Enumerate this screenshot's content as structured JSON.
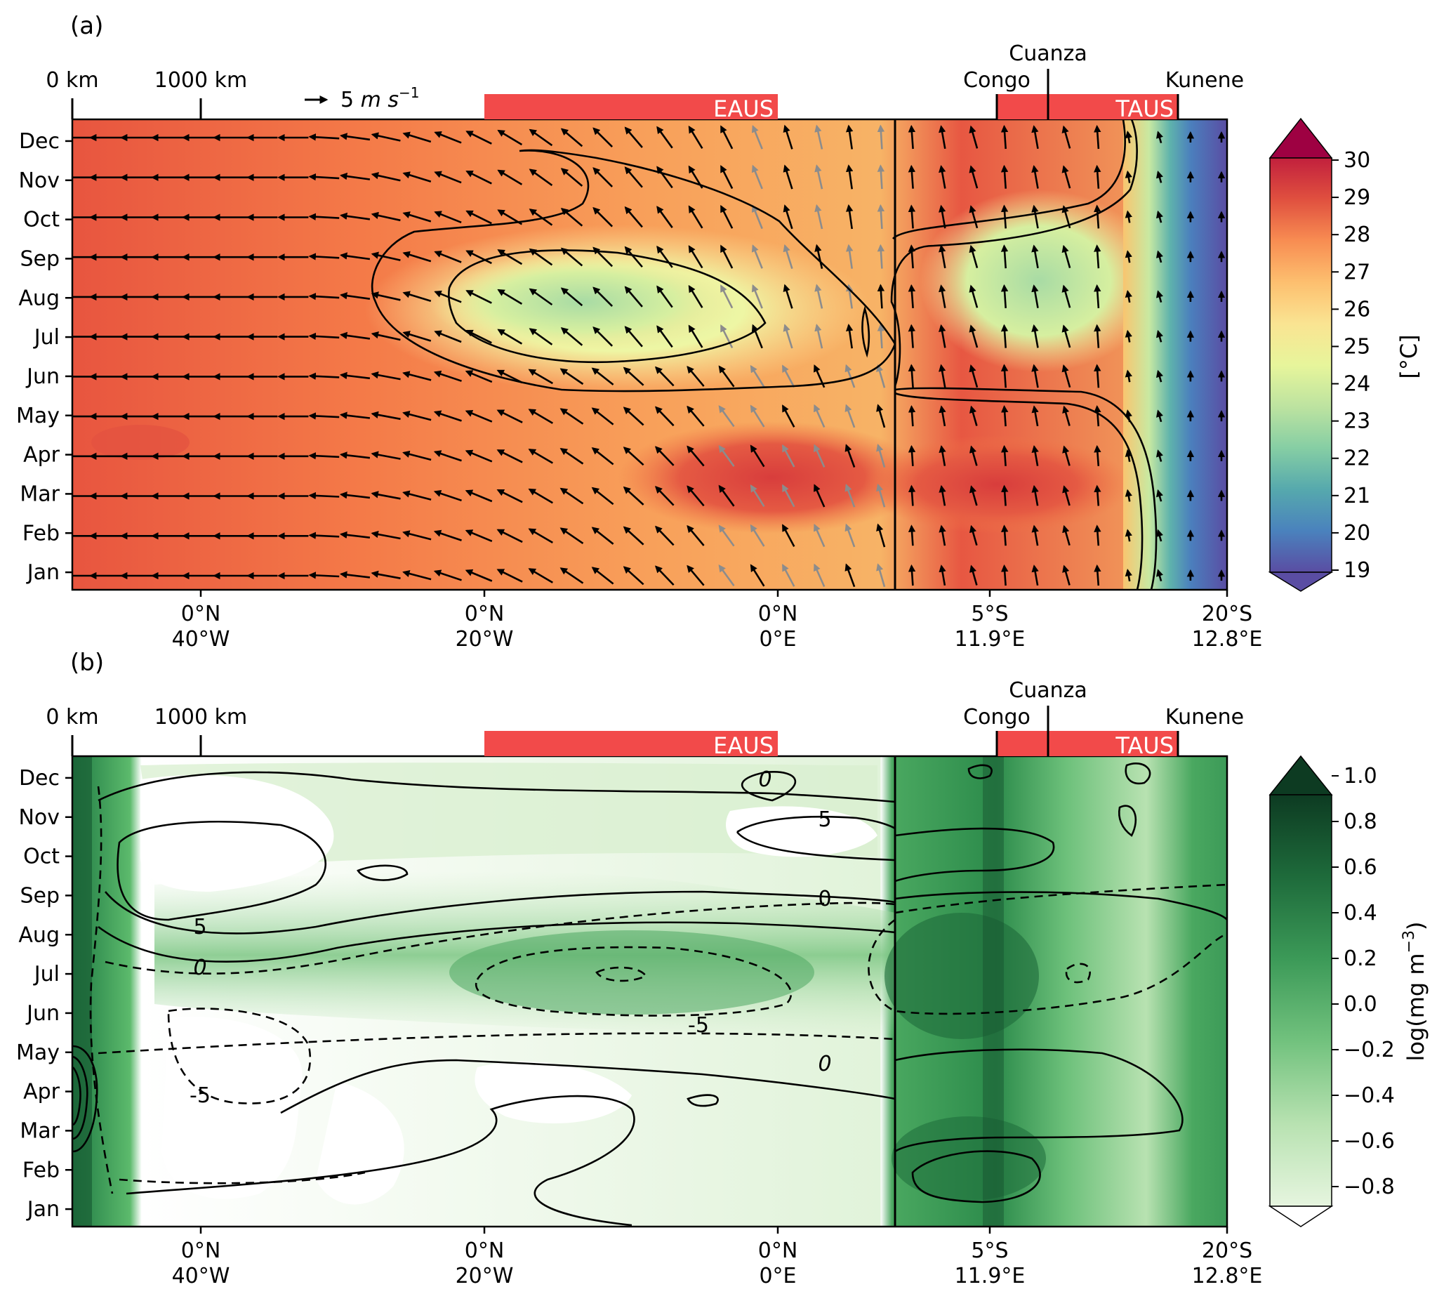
{
  "colors": {
    "band": "#f24a4a",
    "sst_scale": [
      "#5a4da3",
      "#4a82bd",
      "#56a9ad",
      "#86cea4",
      "#bde3a0",
      "#e7f59b",
      "#fae492",
      "#fdbf6f",
      "#f88d52",
      "#ec6845",
      "#d8403d",
      "#9e0142"
    ],
    "chl_scale": [
      "#ffffff",
      "#e6f5df",
      "#c5e8bd",
      "#96d596",
      "#5cba6c",
      "#2f964f",
      "#1a6e3a",
      "#0d3b22"
    ],
    "arrow_black": "#000000",
    "arrow_gray": "#8c8c8c"
  },
  "panels": [
    {
      "label": "(a)",
      "km_ticks": [
        "0 km",
        "1000 km"
      ],
      "arrow_key": "5",
      "arrow_key_unit": "m s",
      "arrow_key_exp": "−1",
      "bands": [
        "EAUS",
        "TAUS"
      ],
      "rivers": [
        "Congo",
        "Cuanza",
        "Kunene"
      ],
      "months": [
        "Dec",
        "Nov",
        "Oct",
        "Sep",
        "Aug",
        "Jul",
        "Jun",
        "May",
        "Apr",
        "Mar",
        "Feb",
        "Jan"
      ],
      "xticks": [
        {
          "lat": "0°N",
          "lon": "40°W"
        },
        {
          "lat": "0°N",
          "lon": "20°W"
        },
        {
          "lat": "0°N",
          "lon": "0°E"
        },
        {
          "lat": "5°S",
          "lon": "11.9°E"
        },
        {
          "lat": "20°S",
          "lon": "12.8°E"
        }
      ],
      "colorbar": {
        "label": "[°C]",
        "ticks": [
          "30",
          "29",
          "28",
          "27",
          "26",
          "25",
          "24",
          "23",
          "22",
          "21",
          "20",
          "19"
        ]
      }
    },
    {
      "label": "(b)",
      "km_ticks": [
        "0 km",
        "1000 km"
      ],
      "bands": [
        "EAUS",
        "TAUS"
      ],
      "rivers": [
        "Congo",
        "Cuanza",
        "Kunene"
      ],
      "months": [
        "Dec",
        "Nov",
        "Oct",
        "Sep",
        "Aug",
        "Jul",
        "Jun",
        "May",
        "Apr",
        "Mar",
        "Feb",
        "Jan"
      ],
      "xticks": [
        {
          "lat": "0°N",
          "lon": "40°W"
        },
        {
          "lat": "0°N",
          "lon": "20°W"
        },
        {
          "lat": "0°N",
          "lon": "0°E"
        },
        {
          "lat": "5°S",
          "lon": "11.9°E"
        },
        {
          "lat": "20°S",
          "lon": "12.8°E"
        }
      ],
      "contour_labels": [
        "0",
        "5",
        "0",
        "5",
        "0",
        "-5",
        "0",
        "-5"
      ],
      "colorbar": {
        "label": "log(mg m",
        "label_exp": "−3",
        "label_close": ")",
        "ticks": [
          "1.0",
          "0.8",
          "0.6",
          "0.4",
          "0.2",
          "0.0",
          "−0.2",
          "−0.4",
          "−0.6",
          "−0.8"
        ]
      }
    }
  ],
  "chart_data": [
    {
      "type": "heatmap",
      "title": "",
      "variable": "SST with surface wind vectors",
      "y_categories": [
        "Jan",
        "Feb",
        "Mar",
        "Apr",
        "May",
        "Jun",
        "Jul",
        "Aug",
        "Sep",
        "Oct",
        "Nov",
        "Dec"
      ],
      "x_ticks": [
        "0°N 40°W",
        "0°N 20°W",
        "0°N 0°E",
        "5°S 11.9°E",
        "20°S 12.8°E"
      ],
      "colorbar_range": [
        19,
        30
      ],
      "colorbar_unit": "[°C]",
      "vector_key": "5 m s-1",
      "regions": [
        "EAUS",
        "TAUS"
      ]
    },
    {
      "type": "heatmap",
      "title": "",
      "variable": "log chlorophyll with contours",
      "y_categories": [
        "Jan",
        "Feb",
        "Mar",
        "Apr",
        "May",
        "Jun",
        "Jul",
        "Aug",
        "Sep",
        "Oct",
        "Nov",
        "Dec"
      ],
      "x_ticks": [
        "0°N 40°W",
        "0°N 20°W",
        "0°N 0°E",
        "5°S 11.9°E",
        "20°S 12.8°E"
      ],
      "colorbar_range": [
        -0.8,
        1.0
      ],
      "colorbar_unit": "log(mg m-3)",
      "contour_levels": [
        -5,
        0,
        5
      ],
      "regions": [
        "EAUS",
        "TAUS"
      ]
    }
  ]
}
